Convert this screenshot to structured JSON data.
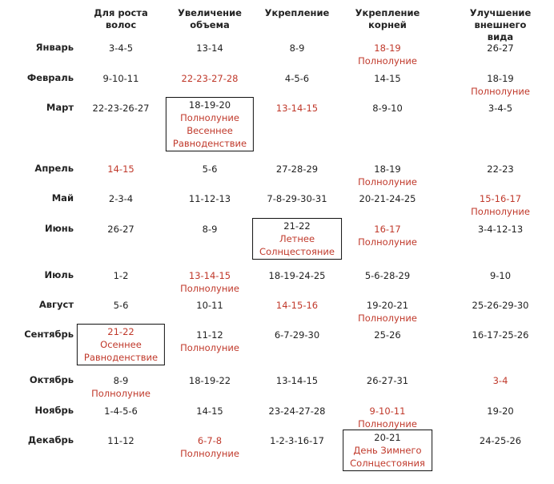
{
  "headers": [
    "Для роста\nволос",
    "Увеличение\nобъема",
    "Укрепление",
    "Укрепление\nкорней",
    "Улучшение\nвнешнего вида"
  ],
  "rows": [
    {
      "month": "Январь",
      "cells": [
        {
          "dates": "3-4-5"
        },
        {
          "dates": "13-14"
        },
        {
          "dates": "8-9"
        },
        {
          "dates": "18-19",
          "red": true,
          "notes": [
            "Полнолуние"
          ]
        },
        {
          "dates": "26-27"
        }
      ]
    },
    {
      "month": "Февраль",
      "cells": [
        {
          "dates": "9-10-11"
        },
        {
          "dates": "22-23-27-28",
          "red": true
        },
        {
          "dates": "4-5-6"
        },
        {
          "dates": "14-15"
        },
        {
          "dates": "18-19",
          "notes": [
            "Полнолуние"
          ]
        }
      ]
    },
    {
      "month": "Март",
      "cells": [
        {
          "dates": "22-23-26-27"
        },
        {
          "dates": "18-19-20",
          "boxed": true,
          "notes": [
            "Полнолуние",
            "Весеннее",
            "Равноденствие"
          ]
        },
        {
          "dates": "13-14-15",
          "red": true
        },
        {
          "dates": "8-9-10"
        },
        {
          "dates": "3-4-5"
        }
      ]
    },
    {
      "month": "Апрель",
      "cells": [
        {
          "dates": "14-15",
          "red": true
        },
        {
          "dates": "5-6"
        },
        {
          "dates": "27-28-29"
        },
        {
          "dates": "18-19",
          "notes": [
            "Полнолуние"
          ]
        },
        {
          "dates": "22-23"
        }
      ]
    },
    {
      "month": "Май",
      "cells": [
        {
          "dates": "2-3-4"
        },
        {
          "dates": "11-12-13"
        },
        {
          "dates": "7-8-29-30-31"
        },
        {
          "dates": "20-21-24-25"
        },
        {
          "dates": "15-16-17",
          "red": true,
          "notes": [
            "Полнолуние"
          ]
        }
      ]
    },
    {
      "month": "Июнь",
      "cells": [
        {
          "dates": "26-27"
        },
        {
          "dates": "8-9"
        },
        {
          "dates": "21-22",
          "boxed": true,
          "notes": [
            "Летнее",
            "Солнцестояние"
          ]
        },
        {
          "dates": "16-17",
          "red": true,
          "notes": [
            "Полнолуние"
          ]
        },
        {
          "dates": "3-4-12-13"
        }
      ]
    },
    {
      "month": "Июль",
      "cells": [
        {
          "dates": "1-2"
        },
        {
          "dates": "13-14-15",
          "red": true,
          "notes": [
            "Полнолуние"
          ]
        },
        {
          "dates": "18-19-24-25"
        },
        {
          "dates": "5-6-28-29"
        },
        {
          "dates": "9-10"
        }
      ]
    },
    {
      "month": "Август",
      "cells": [
        {
          "dates": "5-6"
        },
        {
          "dates": "10-11"
        },
        {
          "dates": "14-15-16",
          "red": true
        },
        {
          "dates": "19-20-21",
          "notes": [
            "Полнолуние"
          ]
        },
        {
          "dates": "25-26-29-30"
        }
      ]
    },
    {
      "month": "Сентябрь",
      "cells": [
        {
          "dates": "21-22",
          "red": true,
          "boxed": true,
          "notes": [
            "Осеннее",
            "Равноденствие"
          ]
        },
        {
          "dates": "11-12",
          "notes": [
            "Полнолуние"
          ]
        },
        {
          "dates": "6-7-29-30"
        },
        {
          "dates": "25-26"
        },
        {
          "dates": "16-17-25-26"
        }
      ]
    },
    {
      "month": "Октябрь",
      "cells": [
        {
          "dates": "8-9",
          "notes": [
            "Полнолуние"
          ]
        },
        {
          "dates": "18-19-22"
        },
        {
          "dates": "13-14-15"
        },
        {
          "dates": "26-27-31"
        },
        {
          "dates": "3-4",
          "red": true
        }
      ]
    },
    {
      "month": "Ноябрь",
      "cells": [
        {
          "dates": "1-4-5-6"
        },
        {
          "dates": "14-15"
        },
        {
          "dates": "23-24-27-28"
        },
        {
          "dates": "9-10-11",
          "red": true,
          "notes": [
            "Полнолуние"
          ]
        },
        {
          "dates": "19-20"
        }
      ]
    },
    {
      "month": "Декабрь",
      "cells": [
        {
          "dates": "11-12"
        },
        {
          "dates": "6-7-8",
          "red": true,
          "notes": [
            "Полнолуние"
          ]
        },
        {
          "dates": "1-2-3-16-17"
        },
        {
          "dates": "20-21",
          "boxed": true,
          "notes": [
            "День Зимнего",
            "Солнцестояния"
          ]
        },
        {
          "dates": "24-25-26"
        }
      ]
    }
  ],
  "colors": {
    "text": "#222222",
    "accent": "#c0392b",
    "box_border": "#111111"
  }
}
